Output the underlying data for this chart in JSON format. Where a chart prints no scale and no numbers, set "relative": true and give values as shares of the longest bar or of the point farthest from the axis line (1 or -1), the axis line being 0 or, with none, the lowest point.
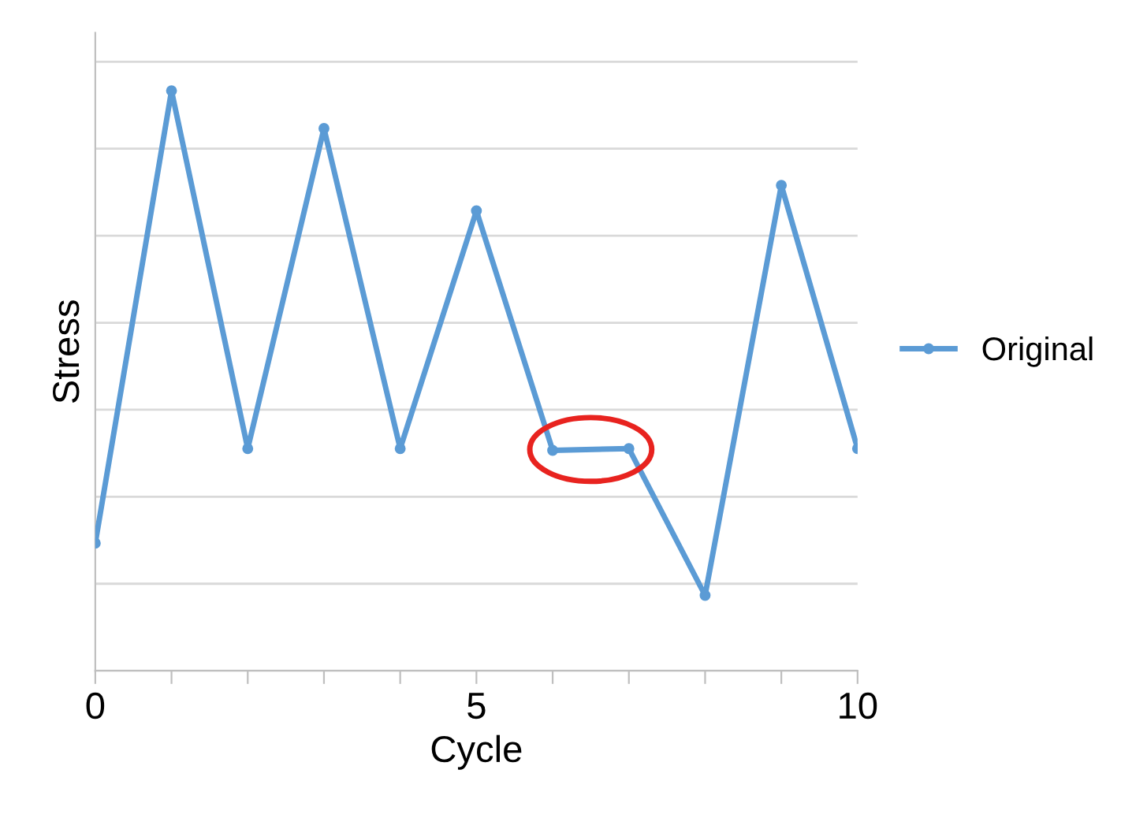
{
  "chart_data": {
    "type": "line",
    "relative": true,
    "xlabel": "Cycle",
    "ylabel": "Stress",
    "x": [
      0,
      1,
      2,
      3,
      4,
      5,
      6,
      7,
      8,
      9,
      10
    ],
    "series": [
      {
        "name": "Original",
        "color": "#5b9bd5",
        "values": [
          0.22,
          1,
          0.383,
          0.935,
          0.383,
          0.793,
          0.38,
          0.383,
          0.13,
          0.837,
          0.383
        ]
      }
    ],
    "xlim": [
      0,
      10
    ],
    "xticks": [
      0,
      {
        "value": 1,
        "label": null
      },
      {
        "value": 2,
        "label": null
      },
      {
        "value": 3,
        "label": null
      },
      {
        "value": 4,
        "label": null
      },
      5,
      {
        "value": 6,
        "label": null
      },
      {
        "value": 7,
        "label": null
      },
      {
        "value": 8,
        "label": null
      },
      {
        "value": 9,
        "label": null
      },
      10
    ],
    "tick_labels": "x",
    "grid": "y",
    "legend": "right",
    "marker": "circle",
    "line_style": "solid"
  }
}
